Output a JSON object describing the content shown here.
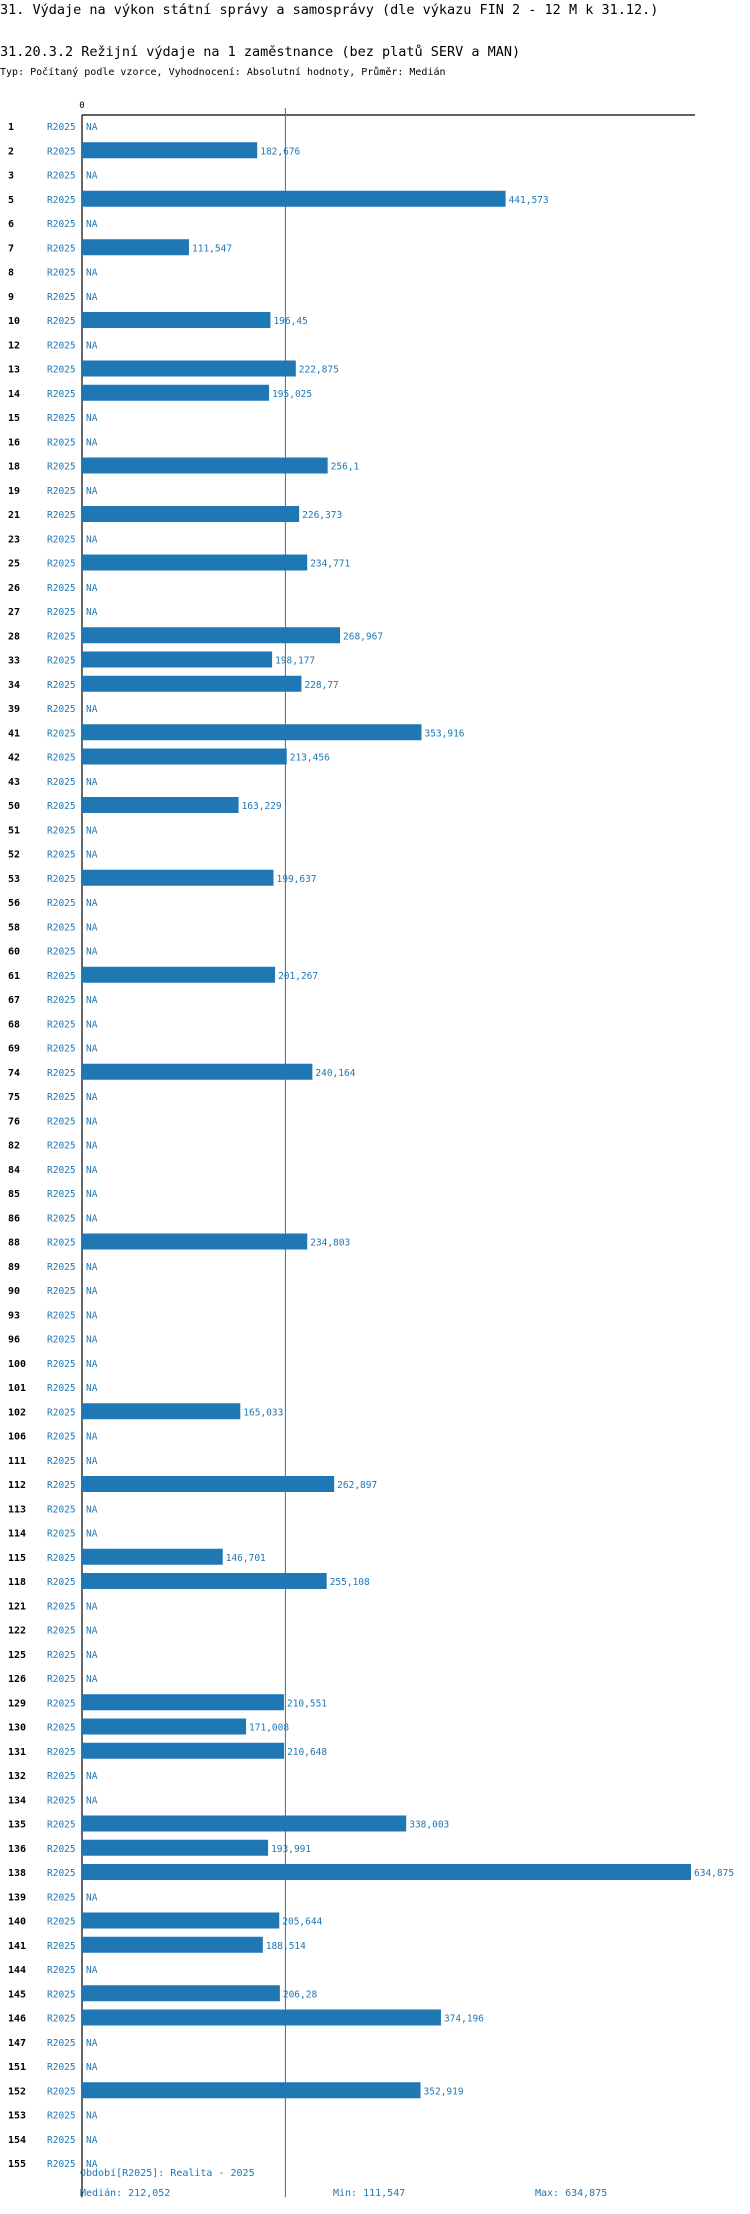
{
  "header": {
    "title": "31. Výdaje na výkon státní správy a samosprávy (dle výkazu FIN 2 - 12 M k 31.12.)",
    "subtitle": "31.20.3.2 Režijní výdaje na 1 zaměstnance (bez platů SERV a MAN)",
    "description": "Typ: Počítaný podle vzorce, Vyhodnocení: Absolutní hodnoty, Průměr: Medián"
  },
  "colors": {
    "bar": "#1f77b4",
    "text_blue": "#1f77b4",
    "axis": "#000000"
  },
  "chart_data": {
    "type": "bar",
    "orientation": "horizontal",
    "axis_zero_label": "0",
    "xlim": [
      0,
      634875
    ],
    "median_line": 212052,
    "period_label": "R2025",
    "na_label": "NA",
    "rows": [
      {
        "id": "1",
        "value": null,
        "label": "NA"
      },
      {
        "id": "2",
        "value": 182676,
        "label": "182,676"
      },
      {
        "id": "3",
        "value": null,
        "label": "NA"
      },
      {
        "id": "5",
        "value": 441573,
        "label": "441,573"
      },
      {
        "id": "6",
        "value": null,
        "label": "NA"
      },
      {
        "id": "7",
        "value": 111547,
        "label": "111,547"
      },
      {
        "id": "8",
        "value": null,
        "label": "NA"
      },
      {
        "id": "9",
        "value": null,
        "label": "NA"
      },
      {
        "id": "10",
        "value": 196450,
        "label": "196,45"
      },
      {
        "id": "12",
        "value": null,
        "label": "NA"
      },
      {
        "id": "13",
        "value": 222875,
        "label": "222,875"
      },
      {
        "id": "14",
        "value": 195025,
        "label": "195,025"
      },
      {
        "id": "15",
        "value": null,
        "label": "NA"
      },
      {
        "id": "16",
        "value": null,
        "label": "NA"
      },
      {
        "id": "18",
        "value": 256100,
        "label": "256,1"
      },
      {
        "id": "19",
        "value": null,
        "label": "NA"
      },
      {
        "id": "21",
        "value": 226373,
        "label": "226,373"
      },
      {
        "id": "23",
        "value": null,
        "label": "NA"
      },
      {
        "id": "25",
        "value": 234771,
        "label": "234,771"
      },
      {
        "id": "26",
        "value": null,
        "label": "NA"
      },
      {
        "id": "27",
        "value": null,
        "label": "NA"
      },
      {
        "id": "28",
        "value": 268967,
        "label": "268,967"
      },
      {
        "id": "33",
        "value": 198177,
        "label": "198,177"
      },
      {
        "id": "34",
        "value": 228770,
        "label": "228,77"
      },
      {
        "id": "39",
        "value": null,
        "label": "NA"
      },
      {
        "id": "41",
        "value": 353916,
        "label": "353,916"
      },
      {
        "id": "42",
        "value": 213456,
        "label": "213,456"
      },
      {
        "id": "43",
        "value": null,
        "label": "NA"
      },
      {
        "id": "50",
        "value": 163229,
        "label": "163,229"
      },
      {
        "id": "51",
        "value": null,
        "label": "NA"
      },
      {
        "id": "52",
        "value": null,
        "label": "NA"
      },
      {
        "id": "53",
        "value": 199637,
        "label": "199,637"
      },
      {
        "id": "56",
        "value": null,
        "label": "NA"
      },
      {
        "id": "58",
        "value": null,
        "label": "NA"
      },
      {
        "id": "60",
        "value": null,
        "label": "NA"
      },
      {
        "id": "61",
        "value": 201267,
        "label": "201,267"
      },
      {
        "id": "67",
        "value": null,
        "label": "NA"
      },
      {
        "id": "68",
        "value": null,
        "label": "NA"
      },
      {
        "id": "69",
        "value": null,
        "label": "NA"
      },
      {
        "id": "74",
        "value": 240164,
        "label": "240,164"
      },
      {
        "id": "75",
        "value": null,
        "label": "NA"
      },
      {
        "id": "76",
        "value": null,
        "label": "NA"
      },
      {
        "id": "82",
        "value": null,
        "label": "NA"
      },
      {
        "id": "84",
        "value": null,
        "label": "NA"
      },
      {
        "id": "85",
        "value": null,
        "label": "NA"
      },
      {
        "id": "86",
        "value": null,
        "label": "NA"
      },
      {
        "id": "88",
        "value": 234803,
        "label": "234,803"
      },
      {
        "id": "89",
        "value": null,
        "label": "NA"
      },
      {
        "id": "90",
        "value": null,
        "label": "NA"
      },
      {
        "id": "93",
        "value": null,
        "label": "NA"
      },
      {
        "id": "96",
        "value": null,
        "label": "NA"
      },
      {
        "id": "100",
        "value": null,
        "label": "NA"
      },
      {
        "id": "101",
        "value": null,
        "label": "NA"
      },
      {
        "id": "102",
        "value": 165033,
        "label": "165,033"
      },
      {
        "id": "106",
        "value": null,
        "label": "NA"
      },
      {
        "id": "111",
        "value": null,
        "label": "NA"
      },
      {
        "id": "112",
        "value": 262897,
        "label": "262,897"
      },
      {
        "id": "113",
        "value": null,
        "label": "NA"
      },
      {
        "id": "114",
        "value": null,
        "label": "NA"
      },
      {
        "id": "115",
        "value": 146701,
        "label": "146,701"
      },
      {
        "id": "118",
        "value": 255108,
        "label": "255,108"
      },
      {
        "id": "121",
        "value": null,
        "label": "NA"
      },
      {
        "id": "122",
        "value": null,
        "label": "NA"
      },
      {
        "id": "125",
        "value": null,
        "label": "NA"
      },
      {
        "id": "126",
        "value": null,
        "label": "NA"
      },
      {
        "id": "129",
        "value": 210551,
        "label": "210,551"
      },
      {
        "id": "130",
        "value": 171008,
        "label": "171,008"
      },
      {
        "id": "131",
        "value": 210648,
        "label": "210,648"
      },
      {
        "id": "132",
        "value": null,
        "label": "NA"
      },
      {
        "id": "134",
        "value": null,
        "label": "NA"
      },
      {
        "id": "135",
        "value": 338003,
        "label": "338,003"
      },
      {
        "id": "136",
        "value": 193991,
        "label": "193,991"
      },
      {
        "id": "138",
        "value": 634875,
        "label": "634,875"
      },
      {
        "id": "139",
        "value": null,
        "label": "NA"
      },
      {
        "id": "140",
        "value": 205644,
        "label": "205,644"
      },
      {
        "id": "141",
        "value": 188514,
        "label": "188,514"
      },
      {
        "id": "144",
        "value": null,
        "label": "NA"
      },
      {
        "id": "145",
        "value": 206280,
        "label": "206,28"
      },
      {
        "id": "146",
        "value": 374196,
        "label": "374,196"
      },
      {
        "id": "147",
        "value": null,
        "label": "NA"
      },
      {
        "id": "151",
        "value": null,
        "label": "NA"
      },
      {
        "id": "152",
        "value": 352919,
        "label": "352,919"
      },
      {
        "id": "153",
        "value": null,
        "label": "NA"
      },
      {
        "id": "154",
        "value": null,
        "label": "NA"
      },
      {
        "id": "155",
        "value": null,
        "label": "NA"
      }
    ]
  },
  "footer": {
    "period": "Období[R2025]: Realita - 2025",
    "median": "Medián: 212,052",
    "min": "Min: 111,547",
    "max": "Max: 634,875"
  }
}
